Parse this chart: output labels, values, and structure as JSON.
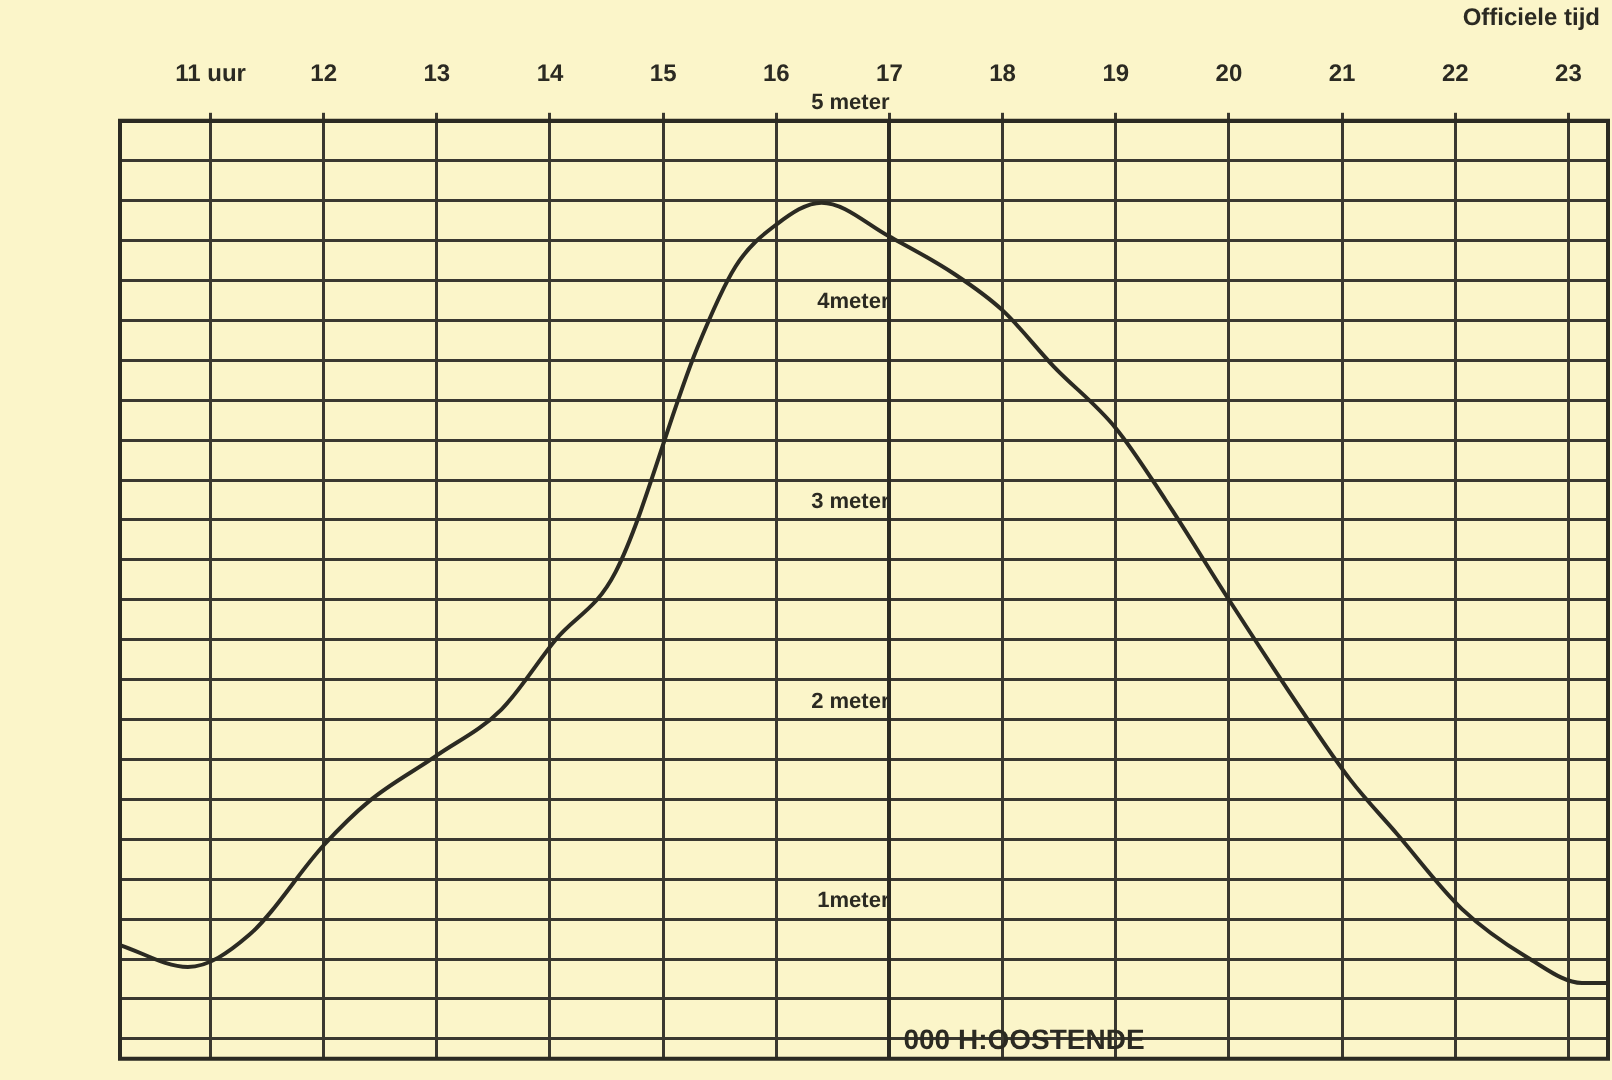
{
  "chart_data": {
    "type": "line",
    "x": [
      10.2,
      10.8,
      11.34,
      12.0,
      12.4,
      13.0,
      13.57,
      14.05,
      14.58,
      15.3,
      15.64,
      16.0,
      16.4,
      17.0,
      17.58,
      18.0,
      18.45,
      19.0,
      19.44,
      20.0,
      20.65,
      21.07,
      21.48,
      22.06,
      22.66,
      23.12,
      23.35
    ],
    "series": [
      {
        "color": "#2b2a22",
        "values": [
          0.87,
          0.76,
          0.92,
          1.37,
          1.59,
          1.82,
          2.05,
          2.4,
          2.74,
          3.86,
          4.27,
          4.48,
          4.59,
          4.42,
          4.23,
          4.05,
          3.77,
          3.46,
          3.1,
          2.6,
          2.04,
          1.7,
          1.43,
          1.05,
          0.8,
          0.68,
          0.68
        ]
      }
    ],
    "xlim": [
      10.2,
      23.35
    ],
    "xticks": [
      {
        "value": 11,
        "label": "11 uur"
      },
      12,
      13,
      14,
      15,
      16,
      17,
      18,
      19,
      20,
      21,
      22,
      23
    ],
    "ylim": [
      0.3,
      5
    ],
    "yticks": [
      {
        "value": 0.4,
        "label": null
      },
      {
        "value": 0.6,
        "label": null
      },
      {
        "value": 0.8,
        "label": null
      },
      {
        "value": 1,
        "label": "1meter"
      },
      {
        "value": 1.2,
        "label": null
      },
      {
        "value": 1.4,
        "label": null
      },
      {
        "value": 1.6,
        "label": null
      },
      {
        "value": 1.8,
        "label": null
      },
      {
        "value": 2,
        "label": "2 meter"
      },
      {
        "value": 2.2,
        "label": null
      },
      {
        "value": 2.4,
        "label": null
      },
      {
        "value": 2.6,
        "label": null
      },
      {
        "value": 2.8,
        "label": null
      },
      {
        "value": 3,
        "label": "3 meter"
      },
      {
        "value": 3.2,
        "label": null
      },
      {
        "value": 3.4,
        "label": null
      },
      {
        "value": 3.6,
        "label": null
      },
      {
        "value": 3.8,
        "label": null
      },
      {
        "value": 4,
        "label": "4meter"
      },
      {
        "value": 4.2,
        "label": null
      },
      {
        "value": 4.4,
        "label": null
      },
      {
        "value": 4.6,
        "label": null
      },
      {
        "value": 4.8,
        "label": null
      },
      {
        "value": 5,
        "label": "5 meter"
      }
    ],
    "grid": true,
    "marker": "none",
    "line_style": "solid",
    "annotations": [
      "Officiele tijd",
      "000 H:OOSTENDE"
    ]
  }
}
